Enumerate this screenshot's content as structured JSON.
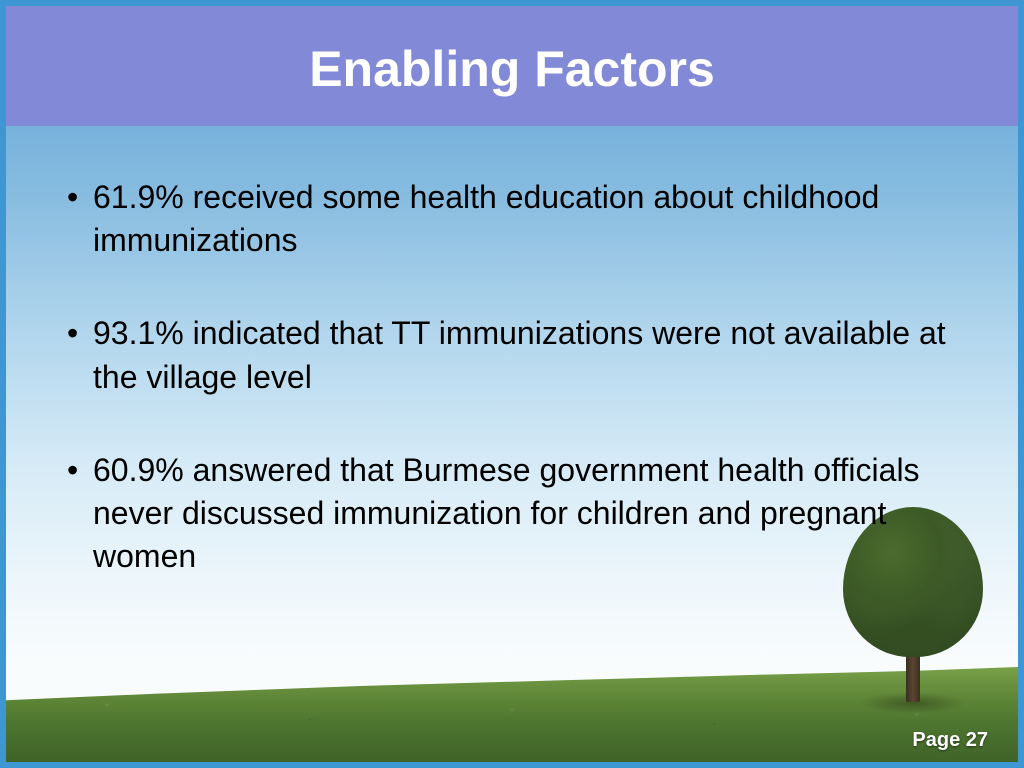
{
  "slide": {
    "title": "Enabling Factors",
    "bullets": [
      "61.9% received some health education about childhood immunizations",
      "93.1% indicated that TT immunizations were not available at the village level",
      "60.9% answered that Burmese government health officials never discussed immunization for children and pregnant women"
    ],
    "page_label": "Page 27"
  },
  "style": {
    "border_color": "#3e97d3",
    "title_bar_bg": "#8289d6",
    "title_color": "#ffffff",
    "title_fontsize": 50,
    "body_fontsize": 32,
    "body_color": "#000000",
    "sky_gradient": [
      "#5a9fd4",
      "#87bce0",
      "#b5d8ee",
      "#d8ecf7",
      "#eff7fb"
    ],
    "grass_gradient": [
      "#7aa24a",
      "#5d8536",
      "#3f6328"
    ],
    "page_label_color": "#ffffff"
  }
}
